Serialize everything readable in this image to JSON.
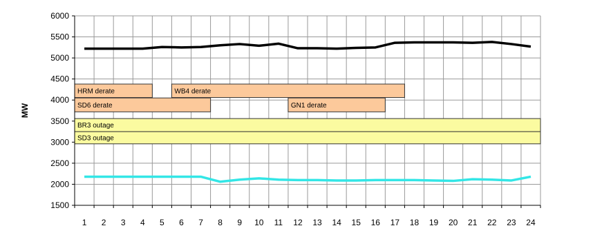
{
  "chart_data": {
    "type": "line",
    "title": "",
    "xlabel": "",
    "ylabel": "MW",
    "ylim": [
      1500,
      6000
    ],
    "yticks": [
      1500,
      2000,
      2500,
      3000,
      3500,
      4000,
      4500,
      5000,
      5500,
      6000
    ],
    "categories": [
      "1",
      "2",
      "3",
      "4",
      "5",
      "6",
      "7",
      "8",
      "9",
      "10",
      "11",
      "12",
      "13",
      "14",
      "15",
      "16",
      "17",
      "18",
      "19",
      "20",
      "21",
      "22",
      "23",
      "24"
    ],
    "grid": true,
    "legend": "none",
    "series": [
      {
        "color": "#000000",
        "values": [
          5220,
          5220,
          5220,
          5220,
          5260,
          5250,
          5260,
          5300,
          5330,
          5290,
          5340,
          5230,
          5230,
          5220,
          5240,
          5250,
          5360,
          5370,
          5370,
          5370,
          5360,
          5380,
          5330,
          5270
        ]
      },
      {
        "color": "#33e6e6",
        "values": [
          2180,
          2180,
          2180,
          2180,
          2180,
          2180,
          2180,
          2060,
          2110,
          2140,
          2110,
          2100,
          2100,
          2090,
          2090,
          2100,
          2100,
          2100,
          2090,
          2080,
          2120,
          2110,
          2090,
          2180
        ]
      }
    ],
    "annotations": [
      {
        "label": "HRM derate",
        "start": 0.5,
        "end": 4.5,
        "y_low": 4060,
        "y_high": 4380,
        "color": "#fcc99b"
      },
      {
        "label": "WB4  derate",
        "start": 5.5,
        "end": 17.5,
        "y_low": 4060,
        "y_high": 4380,
        "color": "#fcc99b"
      },
      {
        "label": "SD6 derate",
        "start": 0.5,
        "end": 7.5,
        "y_low": 3720,
        "y_high": 4050,
        "color": "#fcc99b"
      },
      {
        "label": "GN1 derate",
        "start": 11.5,
        "end": 16.5,
        "y_low": 3720,
        "y_high": 4050,
        "color": "#fcc99b"
      },
      {
        "label": "BR3 outage",
        "start": 0.5,
        "end": 24.5,
        "y_low": 3250,
        "y_high": 3560,
        "color": "#fbfba0"
      },
      {
        "label": "SD3 outage",
        "start": 0.5,
        "end": 24.5,
        "y_low": 2960,
        "y_high": 3250,
        "color": "#fbfba0"
      }
    ]
  }
}
